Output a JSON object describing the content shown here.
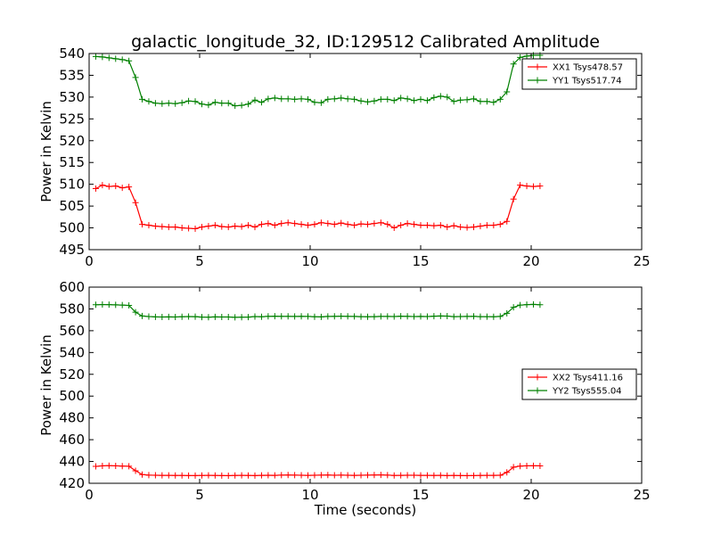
{
  "chart_data": [
    {
      "type": "line",
      "title": "galactic_longitude_32, ID:129512 Calibrated Amplitude",
      "xlabel": "",
      "ylabel": "Power in Kelvin",
      "xlim": [
        0,
        25
      ],
      "ylim": [
        495,
        540
      ],
      "xticks": [
        "0",
        "5",
        "10",
        "15",
        "20",
        "25"
      ],
      "yticks": [
        "495",
        "500",
        "505",
        "510",
        "515",
        "520",
        "525",
        "530",
        "535",
        "540"
      ],
      "grid": false,
      "legend_position": "top-right",
      "x": [
        0.3,
        0.6,
        0.9,
        1.2,
        1.5,
        1.8,
        2.1,
        2.4,
        2.7,
        3.0,
        3.3,
        3.6,
        3.9,
        4.2,
        4.5,
        4.8,
        5.1,
        5.4,
        5.7,
        6.0,
        6.3,
        6.6,
        6.9,
        7.2,
        7.5,
        7.8,
        8.1,
        8.4,
        8.7,
        9.0,
        9.3,
        9.6,
        9.9,
        10.2,
        10.5,
        10.8,
        11.1,
        11.4,
        11.7,
        12.0,
        12.3,
        12.6,
        12.9,
        13.2,
        13.5,
        13.8,
        14.1,
        14.4,
        14.7,
        15.0,
        15.3,
        15.6,
        15.9,
        16.2,
        16.5,
        16.8,
        17.1,
        17.4,
        17.7,
        18.0,
        18.3,
        18.6,
        18.9,
        19.2,
        19.5,
        19.8,
        20.1,
        20.4
      ],
      "series": [
        {
          "name": "XX1 Tsys478.57",
          "color": "#ff0000",
          "values": [
            509.0,
            509.8,
            509.5,
            509.6,
            509.2,
            509.4,
            505.8,
            500.8,
            500.6,
            500.4,
            500.3,
            500.2,
            500.2,
            500.0,
            499.9,
            499.8,
            500.2,
            500.4,
            500.6,
            500.3,
            500.2,
            500.4,
            500.3,
            500.6,
            500.2,
            500.8,
            501.0,
            500.6,
            501.0,
            501.2,
            501.0,
            500.8,
            500.6,
            500.8,
            501.2,
            501.0,
            500.8,
            501.1,
            500.8,
            500.6,
            500.9,
            500.8,
            501.0,
            501.2,
            500.8,
            500.0,
            500.6,
            501.0,
            500.8,
            500.6,
            500.6,
            500.5,
            500.6,
            500.2,
            500.5,
            500.2,
            500.1,
            500.2,
            500.4,
            500.6,
            500.6,
            500.8,
            501.5,
            506.6,
            509.8,
            509.6,
            509.5,
            509.6
          ]
        },
        {
          "name": "YY1 Tsys517.74",
          "color": "#008000",
          "values": [
            539.3,
            539.2,
            539.0,
            538.8,
            538.6,
            538.3,
            534.5,
            529.5,
            529.0,
            528.6,
            528.5,
            528.6,
            528.5,
            528.7,
            529.1,
            529.0,
            528.4,
            528.2,
            528.8,
            528.6,
            528.6,
            528.0,
            528.1,
            528.4,
            529.3,
            528.8,
            529.6,
            529.8,
            529.6,
            529.6,
            529.5,
            529.6,
            529.5,
            528.8,
            528.7,
            529.5,
            529.6,
            529.8,
            529.6,
            529.5,
            529.1,
            528.9,
            529.1,
            529.5,
            529.5,
            529.2,
            529.8,
            529.6,
            529.2,
            529.5,
            529.2,
            529.9,
            530.2,
            530.0,
            529.0,
            529.3,
            529.4,
            529.6,
            529.0,
            529.0,
            528.8,
            529.5,
            531.2,
            537.6,
            539.1,
            539.4,
            539.6,
            539.6
          ]
        }
      ]
    },
    {
      "type": "line",
      "title": "",
      "xlabel": "Time (seconds)",
      "ylabel": "Power in Kelvin",
      "xlim": [
        0,
        25
      ],
      "ylim": [
        420,
        600
      ],
      "xticks": [
        "0",
        "5",
        "10",
        "15",
        "20",
        "25"
      ],
      "yticks": [
        "420",
        "440",
        "460",
        "480",
        "500",
        "520",
        "540",
        "560",
        "580",
        "600"
      ],
      "grid": false,
      "legend_position": "center-right",
      "x": [
        0.3,
        0.6,
        0.9,
        1.2,
        1.5,
        1.8,
        2.1,
        2.4,
        2.7,
        3.0,
        3.3,
        3.6,
        3.9,
        4.2,
        4.5,
        4.8,
        5.1,
        5.4,
        5.7,
        6.0,
        6.3,
        6.6,
        6.9,
        7.2,
        7.5,
        7.8,
        8.1,
        8.4,
        8.7,
        9.0,
        9.3,
        9.6,
        9.9,
        10.2,
        10.5,
        10.8,
        11.1,
        11.4,
        11.7,
        12.0,
        12.3,
        12.6,
        12.9,
        13.2,
        13.5,
        13.8,
        14.1,
        14.4,
        14.7,
        15.0,
        15.3,
        15.6,
        15.9,
        16.2,
        16.5,
        16.8,
        17.1,
        17.4,
        17.7,
        18.0,
        18.3,
        18.6,
        18.9,
        19.2,
        19.5,
        19.8,
        20.1,
        20.4
      ],
      "series": [
        {
          "name": "XX2 Tsys411.16",
          "color": "#ff0000",
          "values": [
            435.5,
            436.0,
            436.2,
            436.0,
            435.8,
            435.6,
            431.5,
            428.0,
            427.5,
            427.4,
            427.3,
            427.3,
            427.2,
            427.2,
            427.1,
            427.1,
            427.2,
            427.3,
            427.2,
            427.1,
            427.0,
            427.2,
            427.3,
            427.2,
            427.1,
            427.3,
            427.4,
            427.3,
            427.5,
            427.6,
            427.5,
            427.4,
            427.3,
            427.4,
            427.5,
            427.6,
            427.4,
            427.5,
            427.4,
            427.3,
            427.4,
            427.5,
            427.6,
            427.7,
            427.5,
            427.2,
            427.3,
            427.4,
            427.4,
            427.3,
            427.3,
            427.2,
            427.3,
            427.1,
            427.2,
            427.1,
            427.0,
            427.1,
            427.2,
            427.3,
            427.3,
            427.4,
            430.0,
            434.8,
            435.8,
            436.0,
            436.1,
            436.0
          ]
        },
        {
          "name": "YY2 Tsys555.04",
          "color": "#008000",
          "values": [
            583.8,
            584.0,
            583.9,
            583.7,
            583.5,
            583.2,
            577.0,
            573.5,
            573.0,
            572.7,
            572.6,
            572.7,
            572.6,
            572.8,
            573.0,
            572.9,
            572.5,
            572.4,
            572.7,
            572.6,
            572.6,
            572.3,
            572.4,
            572.5,
            573.0,
            572.8,
            573.2,
            573.3,
            573.2,
            573.2,
            573.1,
            573.2,
            573.1,
            572.8,
            572.7,
            573.1,
            573.2,
            573.3,
            573.2,
            573.1,
            572.9,
            572.8,
            572.9,
            573.1,
            573.1,
            573.0,
            573.3,
            573.2,
            573.0,
            573.1,
            573.0,
            573.3,
            573.5,
            573.4,
            572.9,
            573.0,
            573.1,
            573.2,
            572.9,
            572.9,
            572.8,
            573.1,
            576.0,
            581.5,
            583.5,
            583.9,
            584.1,
            583.8
          ]
        }
      ]
    }
  ]
}
